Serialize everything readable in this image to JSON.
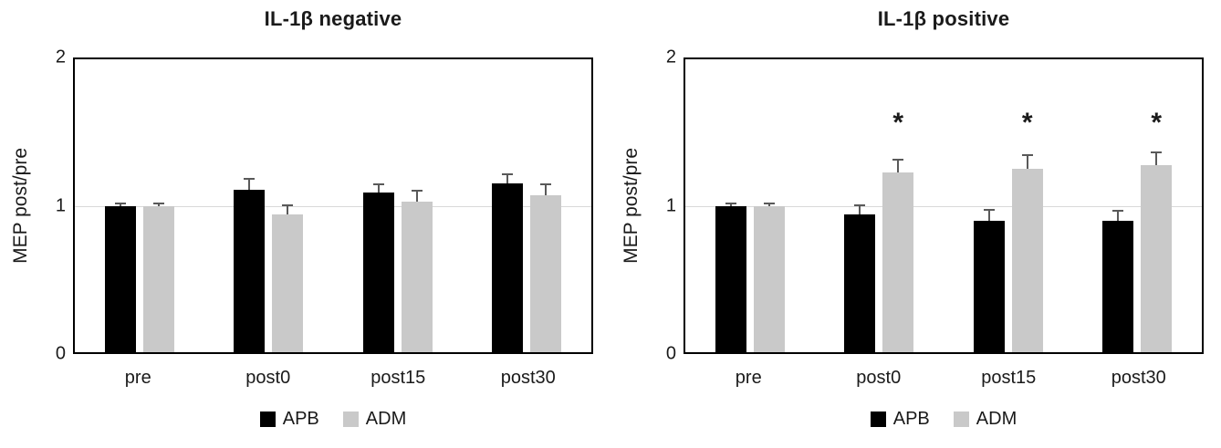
{
  "figure": {
    "background": "#ffffff",
    "text_color": "#1a1a1a",
    "border_color": "#000000",
    "gridline_color": "#d9d9d9",
    "error_bar_color": "#595959"
  },
  "chart_data": [
    {
      "type": "bar",
      "title": "IL-1β negative",
      "xlabel": "",
      "ylabel": "MEP post/pre",
      "ylim": [
        0,
        2
      ],
      "yticks": [
        0,
        1,
        2
      ],
      "gridline_at": 1,
      "grid": "single horizontal line at y=1",
      "legend_position": "bottom",
      "categories": [
        "pre",
        "post0",
        "post15",
        "post30"
      ],
      "series": [
        {
          "name": "APB",
          "color": "#000000",
          "values": [
            1.0,
            1.11,
            1.09,
            1.15
          ],
          "errors": [
            0.02,
            0.08,
            0.06,
            0.07
          ]
        },
        {
          "name": "ADM",
          "color": "#c9c9c9",
          "values": [
            1.0,
            0.94,
            1.03,
            1.07
          ],
          "errors": [
            0.02,
            0.07,
            0.08,
            0.08
          ]
        }
      ],
      "sig_marks": [
        "",
        "",
        "",
        ""
      ],
      "sig_series": "ADM"
    },
    {
      "type": "bar",
      "title": "IL-1β positive",
      "xlabel": "",
      "ylabel": "MEP post/pre",
      "ylim": [
        0,
        2
      ],
      "yticks": [
        0,
        1,
        2
      ],
      "gridline_at": 1,
      "grid": "single horizontal line at y=1",
      "legend_position": "bottom",
      "categories": [
        "pre",
        "post0",
        "post15",
        "post30"
      ],
      "series": [
        {
          "name": "APB",
          "color": "#000000",
          "values": [
            1.0,
            0.94,
            0.9,
            0.9
          ],
          "errors": [
            0.02,
            0.07,
            0.08,
            0.07
          ]
        },
        {
          "name": "ADM",
          "color": "#c9c9c9",
          "values": [
            1.0,
            1.23,
            1.25,
            1.28
          ],
          "errors": [
            0.02,
            0.09,
            0.1,
            0.09
          ]
        }
      ],
      "sig_marks": [
        "",
        "*",
        "*",
        "*"
      ],
      "sig_series": "ADM"
    }
  ]
}
